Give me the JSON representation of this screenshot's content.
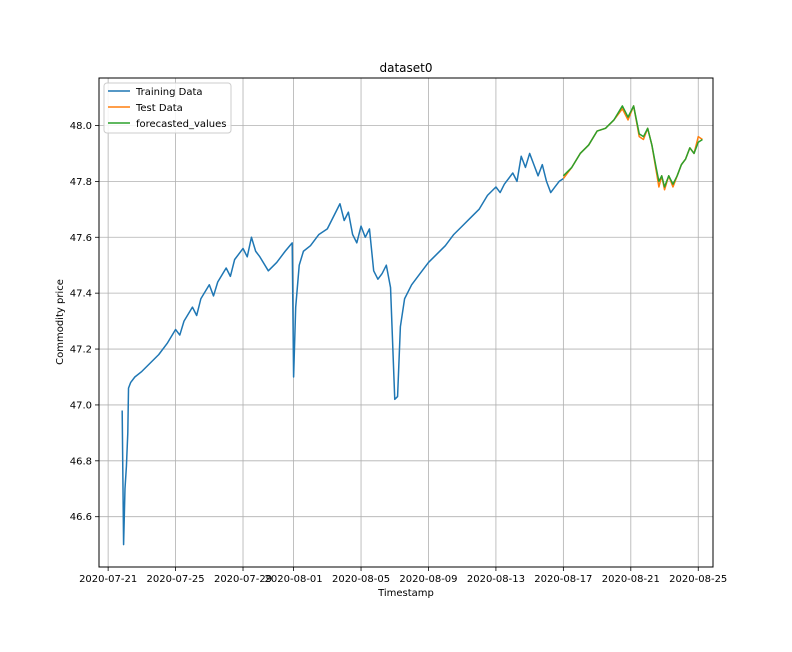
{
  "chart_data": {
    "type": "line",
    "title": "dataset0",
    "xlabel": "Timestamp",
    "ylabel": "Commodity price",
    "grid": true,
    "legend_position": "top-left",
    "xlim": [
      "2020-07-20T11:00",
      "2020-08-25T21:00"
    ],
    "ylim": [
      46.42,
      48.17
    ],
    "x_ticks": [
      "2020-07-21",
      "2020-07-25",
      "2020-07-29",
      "2020-08-01",
      "2020-08-05",
      "2020-08-09",
      "2020-08-13",
      "2020-08-17",
      "2020-08-21",
      "2020-08-25"
    ],
    "y_ticks": [
      46.6,
      46.8,
      47.0,
      47.2,
      47.4,
      47.6,
      47.8,
      48.0
    ],
    "y_tick_labels": [
      "46.6",
      "46.8",
      "47.0",
      "47.2",
      "47.4",
      "47.6",
      "47.8",
      "48.0"
    ],
    "series": [
      {
        "name": "Training Data",
        "color": "#1f77b4",
        "points": [
          [
            "2020-07-21T20:00",
            46.98
          ],
          [
            "2020-07-21T22:00",
            46.5
          ],
          [
            "2020-07-22T00:00",
            46.7
          ],
          [
            "2020-07-22T02:00",
            46.78
          ],
          [
            "2020-07-22T04:00",
            46.9
          ],
          [
            "2020-07-22T05:00",
            47.06
          ],
          [
            "2020-07-22T08:00",
            47.08
          ],
          [
            "2020-07-22T14:00",
            47.1
          ],
          [
            "2020-07-23T00:00",
            47.12
          ],
          [
            "2020-07-23T12:00",
            47.15
          ],
          [
            "2020-07-24T00:00",
            47.18
          ],
          [
            "2020-07-24T12:00",
            47.22
          ],
          [
            "2020-07-25T00:00",
            47.27
          ],
          [
            "2020-07-25T06:00",
            47.25
          ],
          [
            "2020-07-25T12:00",
            47.3
          ],
          [
            "2020-07-26T00:00",
            47.35
          ],
          [
            "2020-07-26T06:00",
            47.32
          ],
          [
            "2020-07-26T12:00",
            47.38
          ],
          [
            "2020-07-27T00:00",
            47.43
          ],
          [
            "2020-07-27T06:00",
            47.39
          ],
          [
            "2020-07-27T12:00",
            47.44
          ],
          [
            "2020-07-28T00:00",
            47.49
          ],
          [
            "2020-07-28T06:00",
            47.46
          ],
          [
            "2020-07-28T12:00",
            47.52
          ],
          [
            "2020-07-29T00:00",
            47.56
          ],
          [
            "2020-07-29T06:00",
            47.53
          ],
          [
            "2020-07-29T12:00",
            47.6
          ],
          [
            "2020-07-29T18:00",
            47.55
          ],
          [
            "2020-07-30T00:00",
            47.53
          ],
          [
            "2020-07-30T12:00",
            47.48
          ],
          [
            "2020-07-31T00:00",
            47.51
          ],
          [
            "2020-07-31T12:00",
            47.55
          ],
          [
            "2020-07-31T22:00",
            47.58
          ],
          [
            "2020-08-01T00:00",
            47.1
          ],
          [
            "2020-08-01T03:00",
            47.35
          ],
          [
            "2020-08-01T08:00",
            47.5
          ],
          [
            "2020-08-01T14:00",
            47.55
          ],
          [
            "2020-08-02T00:00",
            47.57
          ],
          [
            "2020-08-02T12:00",
            47.61
          ],
          [
            "2020-08-03T00:00",
            47.63
          ],
          [
            "2020-08-03T12:00",
            47.69
          ],
          [
            "2020-08-03T18:00",
            47.72
          ],
          [
            "2020-08-04T00:00",
            47.66
          ],
          [
            "2020-08-04T06:00",
            47.69
          ],
          [
            "2020-08-04T12:00",
            47.61
          ],
          [
            "2020-08-04T18:00",
            47.58
          ],
          [
            "2020-08-05T00:00",
            47.64
          ],
          [
            "2020-08-05T06:00",
            47.6
          ],
          [
            "2020-08-05T12:00",
            47.63
          ],
          [
            "2020-08-05T18:00",
            47.48
          ],
          [
            "2020-08-06T00:00",
            47.45
          ],
          [
            "2020-08-06T06:00",
            47.47
          ],
          [
            "2020-08-06T12:00",
            47.5
          ],
          [
            "2020-08-06T18:00",
            47.42
          ],
          [
            "2020-08-07T00:00",
            47.02
          ],
          [
            "2020-08-07T04:00",
            47.03
          ],
          [
            "2020-08-07T08:00",
            47.28
          ],
          [
            "2020-08-07T14:00",
            47.38
          ],
          [
            "2020-08-08T00:00",
            47.43
          ],
          [
            "2020-08-08T12:00",
            47.47
          ],
          [
            "2020-08-09T00:00",
            47.51
          ],
          [
            "2020-08-09T12:00",
            47.54
          ],
          [
            "2020-08-10T00:00",
            47.57
          ],
          [
            "2020-08-10T12:00",
            47.61
          ],
          [
            "2020-08-11T00:00",
            47.64
          ],
          [
            "2020-08-11T12:00",
            47.67
          ],
          [
            "2020-08-12T00:00",
            47.7
          ],
          [
            "2020-08-12T12:00",
            47.75
          ],
          [
            "2020-08-13T00:00",
            47.78
          ],
          [
            "2020-08-13T06:00",
            47.76
          ],
          [
            "2020-08-13T12:00",
            47.79
          ],
          [
            "2020-08-14T00:00",
            47.83
          ],
          [
            "2020-08-14T06:00",
            47.8
          ],
          [
            "2020-08-14T12:00",
            47.89
          ],
          [
            "2020-08-14T18:00",
            47.85
          ],
          [
            "2020-08-15T00:00",
            47.9
          ],
          [
            "2020-08-15T06:00",
            47.86
          ],
          [
            "2020-08-15T12:00",
            47.82
          ],
          [
            "2020-08-15T18:00",
            47.86
          ],
          [
            "2020-08-16T00:00",
            47.8
          ],
          [
            "2020-08-16T06:00",
            47.76
          ],
          [
            "2020-08-16T12:00",
            47.78
          ],
          [
            "2020-08-16T18:00",
            47.8
          ],
          [
            "2020-08-17T00:00",
            47.81
          ]
        ]
      },
      {
        "name": "Test Data",
        "color": "#ff7f0e",
        "points": [
          [
            "2020-08-17T00:00",
            47.81
          ],
          [
            "2020-08-17T12:00",
            47.85
          ],
          [
            "2020-08-18T00:00",
            47.9
          ],
          [
            "2020-08-18T12:00",
            47.93
          ],
          [
            "2020-08-19T00:00",
            47.98
          ],
          [
            "2020-08-19T12:00",
            47.99
          ],
          [
            "2020-08-20T00:00",
            48.02
          ],
          [
            "2020-08-20T12:00",
            48.06
          ],
          [
            "2020-08-20T20:00",
            48.02
          ],
          [
            "2020-08-21T04:00",
            48.07
          ],
          [
            "2020-08-21T12:00",
            47.96
          ],
          [
            "2020-08-21T18:00",
            47.95
          ],
          [
            "2020-08-22T00:00",
            47.99
          ],
          [
            "2020-08-22T06:00",
            47.93
          ],
          [
            "2020-08-22T12:00",
            47.84
          ],
          [
            "2020-08-22T16:00",
            47.78
          ],
          [
            "2020-08-22T20:00",
            47.82
          ],
          [
            "2020-08-23T00:00",
            47.77
          ],
          [
            "2020-08-23T06:00",
            47.82
          ],
          [
            "2020-08-23T12:00",
            47.78
          ],
          [
            "2020-08-23T18:00",
            47.82
          ],
          [
            "2020-08-24T00:00",
            47.86
          ],
          [
            "2020-08-24T06:00",
            47.88
          ],
          [
            "2020-08-24T12:00",
            47.92
          ],
          [
            "2020-08-24T18:00",
            47.9
          ],
          [
            "2020-08-25T00:00",
            47.96
          ],
          [
            "2020-08-25T06:00",
            47.95
          ]
        ]
      },
      {
        "name": "forecasted_values",
        "color": "#2ca02c",
        "points": [
          [
            "2020-08-17T00:00",
            47.82
          ],
          [
            "2020-08-17T12:00",
            47.85
          ],
          [
            "2020-08-18T00:00",
            47.9
          ],
          [
            "2020-08-18T12:00",
            47.93
          ],
          [
            "2020-08-19T00:00",
            47.98
          ],
          [
            "2020-08-19T12:00",
            47.99
          ],
          [
            "2020-08-20T00:00",
            48.02
          ],
          [
            "2020-08-20T12:00",
            48.07
          ],
          [
            "2020-08-20T20:00",
            48.03
          ],
          [
            "2020-08-21T04:00",
            48.07
          ],
          [
            "2020-08-21T12:00",
            47.97
          ],
          [
            "2020-08-21T18:00",
            47.96
          ],
          [
            "2020-08-22T00:00",
            47.99
          ],
          [
            "2020-08-22T06:00",
            47.93
          ],
          [
            "2020-08-22T12:00",
            47.85
          ],
          [
            "2020-08-22T16:00",
            47.8
          ],
          [
            "2020-08-22T20:00",
            47.82
          ],
          [
            "2020-08-23T00:00",
            47.78
          ],
          [
            "2020-08-23T06:00",
            47.82
          ],
          [
            "2020-08-23T12:00",
            47.79
          ],
          [
            "2020-08-23T18:00",
            47.82
          ],
          [
            "2020-08-24T00:00",
            47.86
          ],
          [
            "2020-08-24T06:00",
            47.88
          ],
          [
            "2020-08-24T12:00",
            47.92
          ],
          [
            "2020-08-24T18:00",
            47.9
          ],
          [
            "2020-08-25T00:00",
            47.94
          ],
          [
            "2020-08-25T06:00",
            47.95
          ]
        ]
      }
    ]
  }
}
